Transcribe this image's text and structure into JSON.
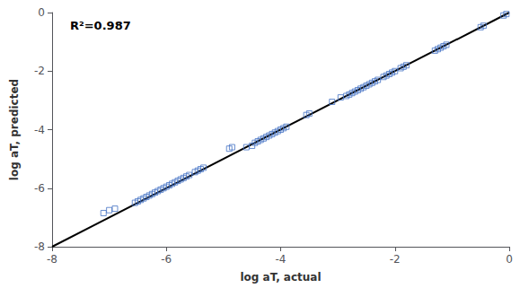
{
  "chart_data": {
    "type": "scatter",
    "xlabel": "log aT, actual",
    "ylabel": "log aT, predicted",
    "annotation": "R²=0.987",
    "xlim": [
      -8,
      0
    ],
    "ylim": [
      -8,
      0
    ],
    "xticks": [
      -8,
      -6,
      -4,
      -2,
      0
    ],
    "yticks": [
      -8,
      -6,
      -4,
      -2,
      0
    ],
    "grid": false,
    "series": [
      {
        "type": "line",
        "color": "#000000",
        "x": [
          -8,
          0
        ],
        "values": [
          -8,
          0
        ]
      },
      {
        "type": "scatter",
        "color": "#4472C4",
        "marker": "square",
        "x": [
          -7.1,
          -7.0,
          -6.9,
          -6.55,
          -6.5,
          -6.45,
          -6.4,
          -6.35,
          -6.3,
          -6.25,
          -6.2,
          -6.15,
          -6.1,
          -6.05,
          -6.0,
          -5.95,
          -5.9,
          -5.85,
          -5.8,
          -5.75,
          -5.7,
          -5.65,
          -5.6,
          -5.5,
          -5.45,
          -5.4,
          -5.35,
          -4.9,
          -4.85,
          -4.6,
          -4.5,
          -4.45,
          -4.4,
          -4.35,
          -4.3,
          -4.25,
          -4.2,
          -4.15,
          -4.1,
          -4.05,
          -4.0,
          -3.95,
          -3.9,
          -3.55,
          -3.5,
          -3.1,
          -2.95,
          -2.85,
          -2.8,
          -2.75,
          -2.7,
          -2.65,
          -2.6,
          -2.55,
          -2.5,
          -2.45,
          -2.4,
          -2.35,
          -2.3,
          -2.2,
          -2.15,
          -2.1,
          -2.05,
          -2.0,
          -1.9,
          -1.85,
          -1.8,
          -1.3,
          -1.25,
          -1.2,
          -1.15,
          -1.1,
          -0.5,
          -0.45,
          -0.1,
          -0.05
        ],
        "values": [
          -6.85,
          -6.75,
          -6.7,
          -6.5,
          -6.45,
          -6.4,
          -6.35,
          -6.3,
          -6.25,
          -6.2,
          -6.15,
          -6.1,
          -6.05,
          -6.0,
          -5.95,
          -5.9,
          -5.85,
          -5.8,
          -5.75,
          -5.7,
          -5.65,
          -5.6,
          -5.55,
          -5.45,
          -5.4,
          -5.35,
          -5.3,
          -4.65,
          -4.6,
          -4.6,
          -4.55,
          -4.45,
          -4.4,
          -4.35,
          -4.3,
          -4.25,
          -4.2,
          -4.15,
          -4.1,
          -4.05,
          -4.0,
          -3.95,
          -3.9,
          -3.5,
          -3.45,
          -3.05,
          -2.9,
          -2.85,
          -2.8,
          -2.75,
          -2.7,
          -2.65,
          -2.6,
          -2.55,
          -2.5,
          -2.45,
          -2.4,
          -2.35,
          -2.3,
          -2.2,
          -2.15,
          -2.1,
          -2.05,
          -2.0,
          -1.9,
          -1.85,
          -1.8,
          -1.3,
          -1.25,
          -1.2,
          -1.15,
          -1.1,
          -0.5,
          -0.45,
          -0.1,
          -0.05
        ]
      }
    ]
  }
}
